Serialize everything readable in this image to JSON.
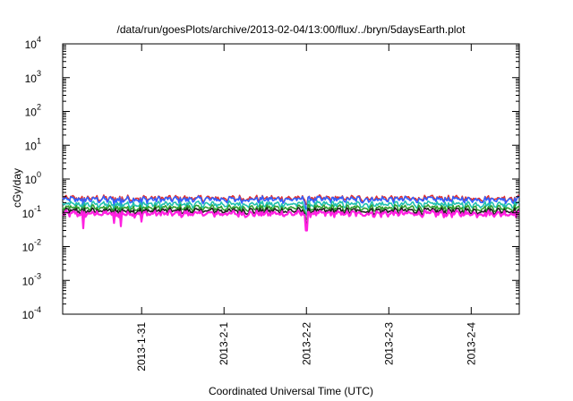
{
  "chart_data": {
    "type": "line",
    "title": "/data/run/goesPlots/archive/2013-02-04/13:00/flux/../bryn/5daysEarth.plot",
    "xlabel": "Coordinated Universal Time (UTC)",
    "ylabel": "cGy/day",
    "yscale": "log",
    "ylim": [
      0.0001,
      10000
    ],
    "y_ticks": [
      {
        "base": "10",
        "exp": "-4"
      },
      {
        "base": "10",
        "exp": "-3"
      },
      {
        "base": "10",
        "exp": "-2"
      },
      {
        "base": "10",
        "exp": "-1"
      },
      {
        "base": "10",
        "exp": "0"
      },
      {
        "base": "10",
        "exp": "1"
      },
      {
        "base": "10",
        "exp": "2"
      },
      {
        "base": "10",
        "exp": "3"
      },
      {
        "base": "10",
        "exp": "4"
      }
    ],
    "xlim": [
      "2013-01-30 01:00",
      "2013-02-04 14:00"
    ],
    "x_ticks": [
      "2013-1-31",
      "2013-2-1",
      "2013-2-2",
      "2013-2-3",
      "2013-2-4"
    ],
    "grid": false,
    "legend": "none",
    "series": [
      {
        "color": "#e03030",
        "baseline": 0.27,
        "dip_scale": 0.5
      },
      {
        "color": "#3060ff",
        "baseline": 0.25,
        "dip_scale": 0.7
      },
      {
        "color": "#20c0b0",
        "baseline": 0.18,
        "dip_scale": 0.75
      },
      {
        "color": "#30a030",
        "baseline": 0.14,
        "dip_scale": 0.8
      },
      {
        "color": "#202020",
        "baseline": 0.115,
        "dip_scale": 0.85
      },
      {
        "color": "#ff20e0",
        "baseline": 0.095,
        "dip_scale": 1.0
      }
    ],
    "dips": [
      {
        "date": "2013-01-30 07:00",
        "value": 0.035
      },
      {
        "date": "2013-01-30 16:00",
        "value": 0.05
      },
      {
        "date": "2013-01-30 18:00",
        "value": 0.04
      },
      {
        "date": "2013-01-31 00:00",
        "value": 0.055
      },
      {
        "date": "2013-02-02 00:00",
        "value": 0.03
      }
    ]
  }
}
